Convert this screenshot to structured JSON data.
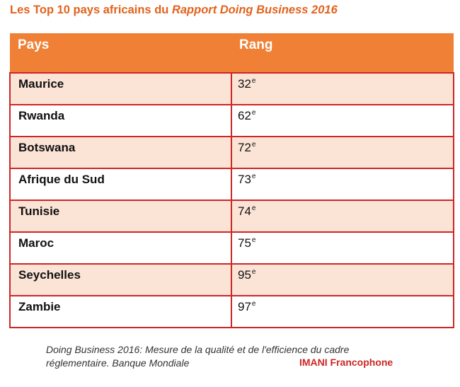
{
  "title": {
    "prefix": "Les Top 10 pays africains du ",
    "emphasis": "Rapport Doing Business 2016"
  },
  "table": {
    "headers": [
      "Pays",
      "Rang"
    ],
    "rows": [
      {
        "country": "Maurice",
        "rank": "32",
        "suffix": "e"
      },
      {
        "country": "Rwanda",
        "rank": "62",
        "suffix": "e"
      },
      {
        "country": "Botswana",
        "rank": "72",
        "suffix": "e"
      },
      {
        "country": "Afrique du Sud",
        "rank": "73",
        "suffix": "e"
      },
      {
        "country": "Tunisie",
        "rank": "74",
        "suffix": "e"
      },
      {
        "country": "Maroc",
        "rank": "75",
        "suffix": "e"
      },
      {
        "country": "Seychelles",
        "rank": "95",
        "suffix": "e"
      },
      {
        "country": "Zambie",
        "rank": "97",
        "suffix": "e"
      }
    ]
  },
  "caption": {
    "line1": "Doing Business 2016: Mesure de la qualité et de l'efficience du cadre",
    "line2": "réglementaire. Banque Mondiale"
  },
  "credit": "IMANI Francophone",
  "colors": {
    "title": "#e2621c",
    "header_bg": "#f08035",
    "border": "#cd2626",
    "shaded_row": "#fbe4d6",
    "credit": "#cd2626"
  }
}
